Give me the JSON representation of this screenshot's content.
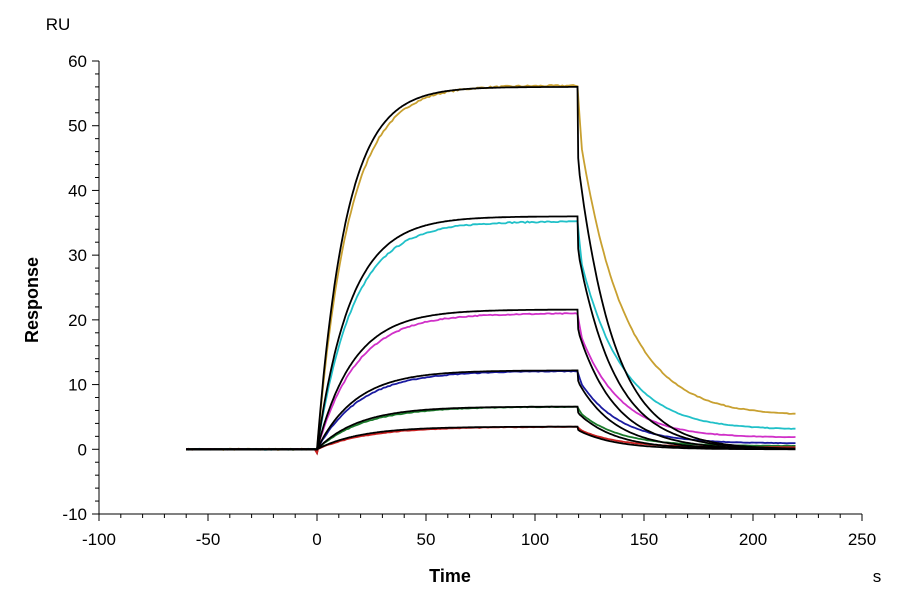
{
  "chart_data": {
    "type": "line",
    "title": "",
    "xlabel": "Time",
    "ylabel": "Response",
    "x_unit": "s",
    "y_unit": "RU",
    "xlim": [
      -100,
      250
    ],
    "ylim": [
      -10,
      60
    ],
    "x_ticks": [
      -100,
      -50,
      0,
      50,
      100,
      150,
      200,
      250
    ],
    "y_ticks": [
      -10,
      0,
      10,
      20,
      30,
      40,
      50,
      60
    ],
    "x_minor_step": 10,
    "y_minor_step": 2,
    "grid": false,
    "legend": "none",
    "association": {
      "start": 0,
      "end": 119.5
    },
    "dissociation_end": 220,
    "baseline_start": -60,
    "fit_color": "#000000",
    "series": [
      {
        "color": "#c8a030",
        "plateau": 56.2,
        "k_on": 0.068,
        "k_off": 0.049,
        "residual": 5.1,
        "jump": 5.5,
        "noise": 0.25
      },
      {
        "color": "#20c0c8",
        "plateau": 35.2,
        "k_on": 0.06,
        "k_off": 0.052,
        "residual": 3.0,
        "jump": 3.8,
        "noise": 0.2
      },
      {
        "color": "#d030c8",
        "plateau": 21.0,
        "k_on": 0.055,
        "k_off": 0.055,
        "residual": 1.8,
        "jump": 2.0,
        "noise": 0.15
      },
      {
        "color": "#1a1aa0",
        "plateau": 12.1,
        "k_on": 0.05,
        "k_off": 0.055,
        "residual": 0.9,
        "jump": 1.0,
        "noise": 0.12
      },
      {
        "color": "#1a7a2a",
        "plateau": 6.6,
        "k_on": 0.046,
        "k_off": 0.056,
        "residual": 0.5,
        "jump": 0.6,
        "noise": 0.1
      },
      {
        "color": "#cc2020",
        "plateau": 3.5,
        "k_on": 0.042,
        "k_off": 0.057,
        "residual": 0.3,
        "jump": 0.3,
        "noise": 0.08
      }
    ],
    "fits": [
      {
        "plateau": 56.0,
        "k_on": 0.075,
        "k_off": 0.06,
        "jump": 11.0
      },
      {
        "plateau": 36.0,
        "k_on": 0.065,
        "k_off": 0.058,
        "jump": 5.0
      },
      {
        "plateau": 21.6,
        "k_on": 0.06,
        "k_off": 0.058,
        "jump": 3.0
      },
      {
        "plateau": 12.2,
        "k_on": 0.056,
        "k_off": 0.058,
        "jump": 1.6
      },
      {
        "plateau": 6.6,
        "k_on": 0.052,
        "k_off": 0.058,
        "jump": 0.9
      },
      {
        "plateau": 3.5,
        "k_on": 0.05,
        "k_off": 0.058,
        "jump": 0.5
      }
    ]
  }
}
